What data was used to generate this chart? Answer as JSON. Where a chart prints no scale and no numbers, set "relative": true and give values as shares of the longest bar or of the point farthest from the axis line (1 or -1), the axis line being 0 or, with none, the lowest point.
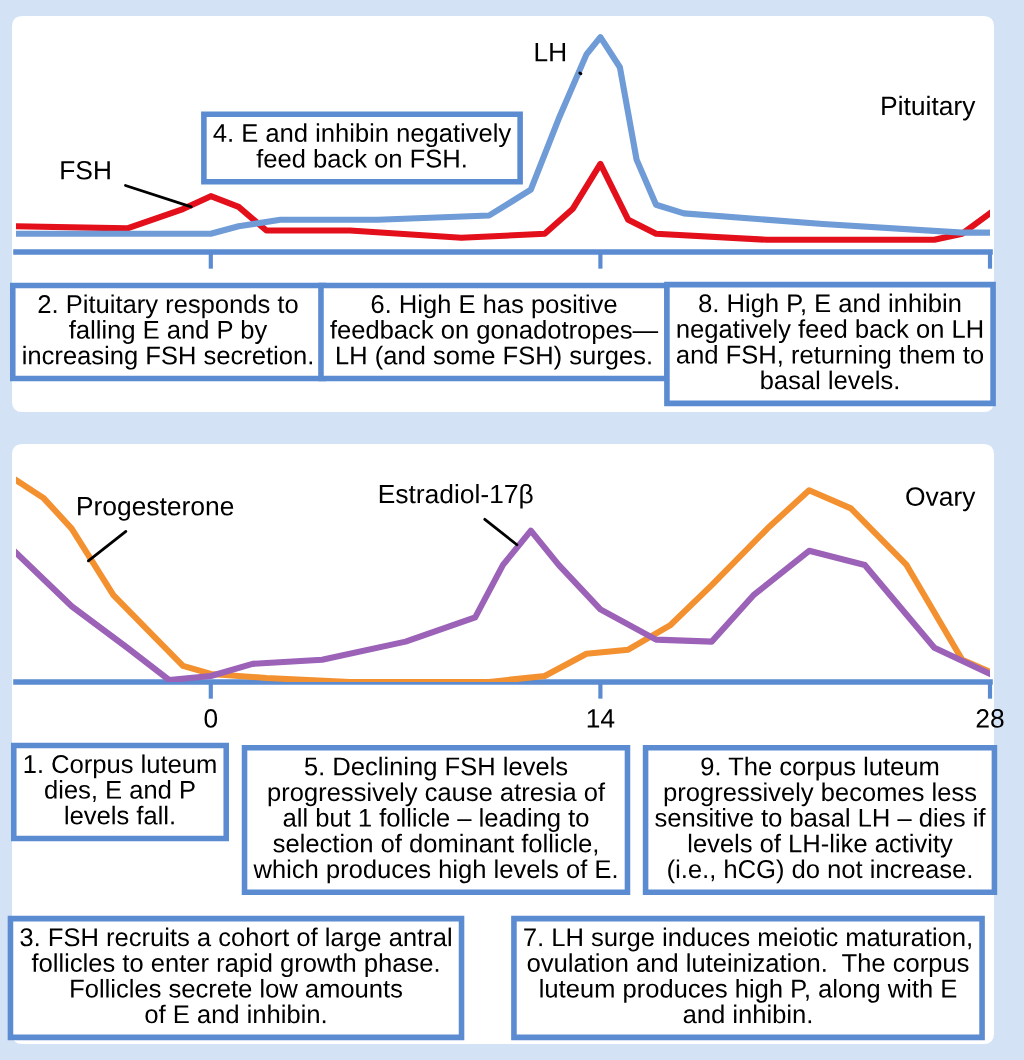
{
  "chart_data": [
    {
      "type": "line",
      "title": "Pituitary",
      "relative": true,
      "xlim": [
        -7,
        28
      ],
      "xticks": [
        {
          "value": 0,
          "label": null
        },
        {
          "value": 14,
          "label": null
        },
        {
          "value": 28,
          "label": null
        }
      ],
      "tick_labels": false,
      "grid": false,
      "legend": false,
      "series": [
        {
          "name": "FSH",
          "color": "#e3101c",
          "x": [
            -7,
            -3,
            -1,
            0,
            1,
            2,
            5,
            9,
            12,
            13,
            14,
            15,
            16,
            20,
            26,
            27,
            28
          ],
          "values": [
            0.12,
            0.11,
            0.2,
            0.26,
            0.21,
            0.1,
            0.1,
            0.066,
            0.085,
            0.2,
            0.41,
            0.15,
            0.085,
            0.057,
            0.057,
            0.085,
            0.18
          ]
        },
        {
          "name": "LH",
          "color": "#6f9bd6",
          "x": [
            -7,
            0,
            1,
            2.5,
            6,
            10,
            11.5,
            12.5,
            13.5,
            14,
            14.7,
            15.3,
            16,
            17,
            22,
            27,
            28
          ],
          "values": [
            0.085,
            0.085,
            0.12,
            0.15,
            0.15,
            0.17,
            0.29,
            0.62,
            0.92,
            1.0,
            0.86,
            0.43,
            0.22,
            0.18,
            0.13,
            0.09,
            0.09
          ]
        }
      ],
      "annotations": [
        "2. Pituitary responds to\nfalling E and P by\nincreasing FSH secretion.",
        "4. E and inhibin negatively\nfeed back on FSH.",
        "6. High E has positive\nfeedback on gonadotropes—\nLH (and some FSH) surges.",
        "8. High P, E and inhibin\nnegatively feed back on LH\nand FSH, returning them to\nbasal levels."
      ]
    },
    {
      "type": "line",
      "title": "Ovary",
      "relative": true,
      "xlim": [
        -7,
        28
      ],
      "xticks": [
        0,
        14,
        28
      ],
      "tick_labels": "x",
      "grid": false,
      "legend": false,
      "series": [
        {
          "name": "Progesterone",
          "color": "#f39130",
          "x": [
            -7,
            -6,
            -5,
            -3.5,
            -2,
            -1,
            0,
            2,
            5,
            10,
            12,
            13.5,
            15,
            16.5,
            18,
            20,
            21.5,
            23,
            25,
            27,
            28
          ],
          "values": [
            1.0,
            0.91,
            0.76,
            0.43,
            0.22,
            0.08,
            0.04,
            0.02,
            0.0,
            0.0,
            0.03,
            0.14,
            0.16,
            0.28,
            0.48,
            0.76,
            0.95,
            0.86,
            0.58,
            0.11,
            0.05
          ]
        },
        {
          "name": "Estradiol-17β",
          "color": "#9b62b8",
          "x": [
            -7,
            -5,
            -3,
            -1.5,
            0,
            1.5,
            4,
            7,
            9.5,
            10.5,
            11.5,
            12.5,
            14,
            16,
            18,
            19.5,
            21.5,
            23.5,
            26,
            28
          ],
          "values": [
            0.64,
            0.375,
            0.17,
            0.01,
            0.03,
            0.09,
            0.11,
            0.2,
            0.32,
            0.58,
            0.75,
            0.58,
            0.36,
            0.21,
            0.2,
            0.43,
            0.65,
            0.58,
            0.17,
            0.04
          ]
        }
      ],
      "annotations": [
        "1. Corpus luteum\ndies, E and P\nlevels fall.",
        "5. Declining FSH levels\nprogressively cause atresia of\nall but 1 follicle – leading to\nselection of dominant follicle,\nwhich produces high levels of E.",
        "9. The corpus luteum\nprogressively becomes less\nsensitive to basal LH – dies if\nlevels of LH-like activity\n(i.e., hCG) do not increase.",
        "3. FSH recruits a cohort of large antral\nfollicles to enter rapid growth phase.\nFollicles secrete low amounts\nof E and inhibin.",
        "7. LH surge induces meiotic maturation,\novulation and luteinization.  The corpus\nluteum produces high P, along with E\nand inhibin."
      ]
    }
  ]
}
